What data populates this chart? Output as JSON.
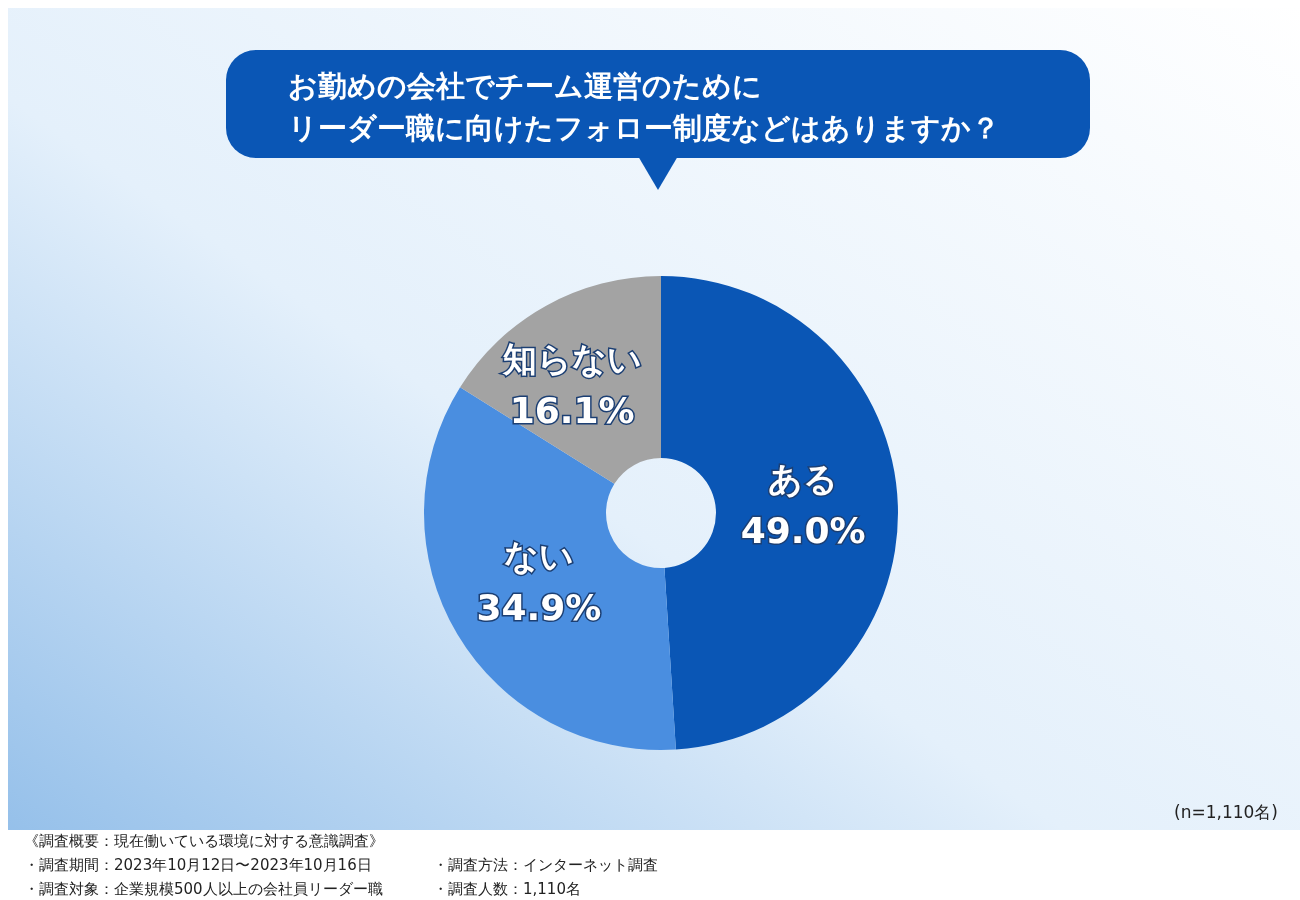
{
  "chart_data": {
    "type": "donut",
    "title": "お勤めの会社でチーム運営のためにリーダー職に向けたフォロー制度などはありますか？",
    "categories": [
      "ある",
      "ない",
      "知らない"
    ],
    "values": [
      49.0,
      34.9,
      16.1
    ],
    "value_labels": [
      "49.0%",
      "34.9%",
      "16.1%"
    ],
    "colors": [
      "#0a56b5",
      "#4a8ee0",
      "#a3a3a3"
    ],
    "annotations": [
      "(n=1,110名)",
      "《調査概要：現在働いている環境に対する意識調査》",
      "・調査期間：2023年10月12日〜2023年10月16日",
      "・調査方法：インターネット調査",
      "・調査対象：企業規模500人以上の会社員リーダー職",
      "・調査人数：1,110名"
    ]
  }
}
